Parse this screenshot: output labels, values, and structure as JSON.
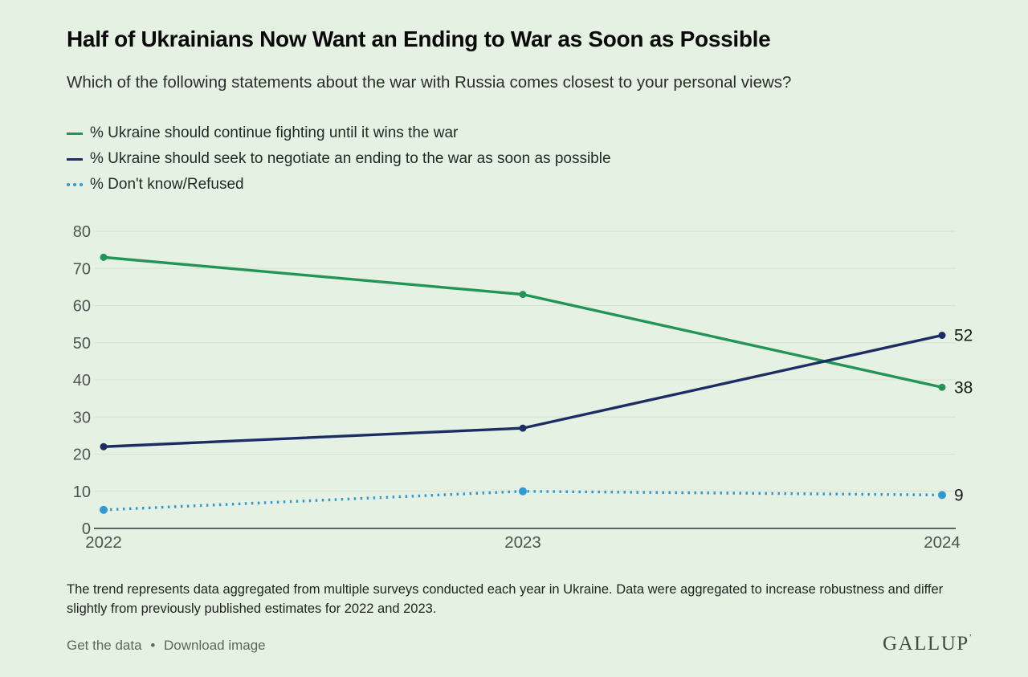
{
  "page": {
    "background": "#e5f1e3"
  },
  "header": {
    "title": "Half of Ukrainians Now Want an Ending to War as Soon as Possible",
    "subtitle": "Which of the following statements about the war with Russia comes closest to your personal views?"
  },
  "legend": {
    "items": [
      {
        "label": "% Ukraine should continue fighting until it wins the war",
        "color": "#229457",
        "style": "solid"
      },
      {
        "label": "% Ukraine should seek to negotiate an ending to the war as soon as possible",
        "color": "#1b2d63",
        "style": "solid"
      },
      {
        "label": "% Don't know/Refused",
        "color": "#2f9ad2",
        "style": "dotted"
      }
    ]
  },
  "chart_data": {
    "type": "line",
    "categories": [
      "2022",
      "2023",
      "2024"
    ],
    "series": [
      {
        "name": "% Ukraine should continue fighting until it wins the war",
        "values": [
          73,
          63,
          38
        ],
        "color": "#229457",
        "dash": "solid",
        "end_label": "38",
        "marker_radius": 4.5
      },
      {
        "name": "% Ukraine should seek to negotiate an ending to the war as soon as possible",
        "values": [
          22,
          27,
          52
        ],
        "color": "#1b2d63",
        "dash": "solid",
        "end_label": "52",
        "marker_radius": 4.5
      },
      {
        "name": "% Don't know/Refused",
        "values": [
          5,
          10,
          9
        ],
        "color": "#2f9ad2",
        "dash": "dotted",
        "end_label": "9",
        "marker_radius": 5
      }
    ],
    "ylim": [
      0,
      80
    ],
    "yticks": [
      0,
      10,
      20,
      30,
      40,
      50,
      60,
      70,
      80
    ],
    "grid": "horizontal",
    "legend_position": "top-left",
    "colors": {
      "gridline": "#d5e3d3",
      "axis_line": "#2e342f",
      "tick_label": "#4e544e",
      "end_label": "#191919"
    }
  },
  "footnote": "The trend represents data aggregated from multiple surveys conducted each year in Ukraine. Data were aggregated to increase robustness and differ slightly from previously published estimates for 2022 and 2023.",
  "footer": {
    "links": [
      {
        "label": "Get the data"
      },
      {
        "label": "Download image"
      }
    ],
    "separator": "•",
    "brand": "GALLUP",
    "brand_mark": "ʼ"
  }
}
